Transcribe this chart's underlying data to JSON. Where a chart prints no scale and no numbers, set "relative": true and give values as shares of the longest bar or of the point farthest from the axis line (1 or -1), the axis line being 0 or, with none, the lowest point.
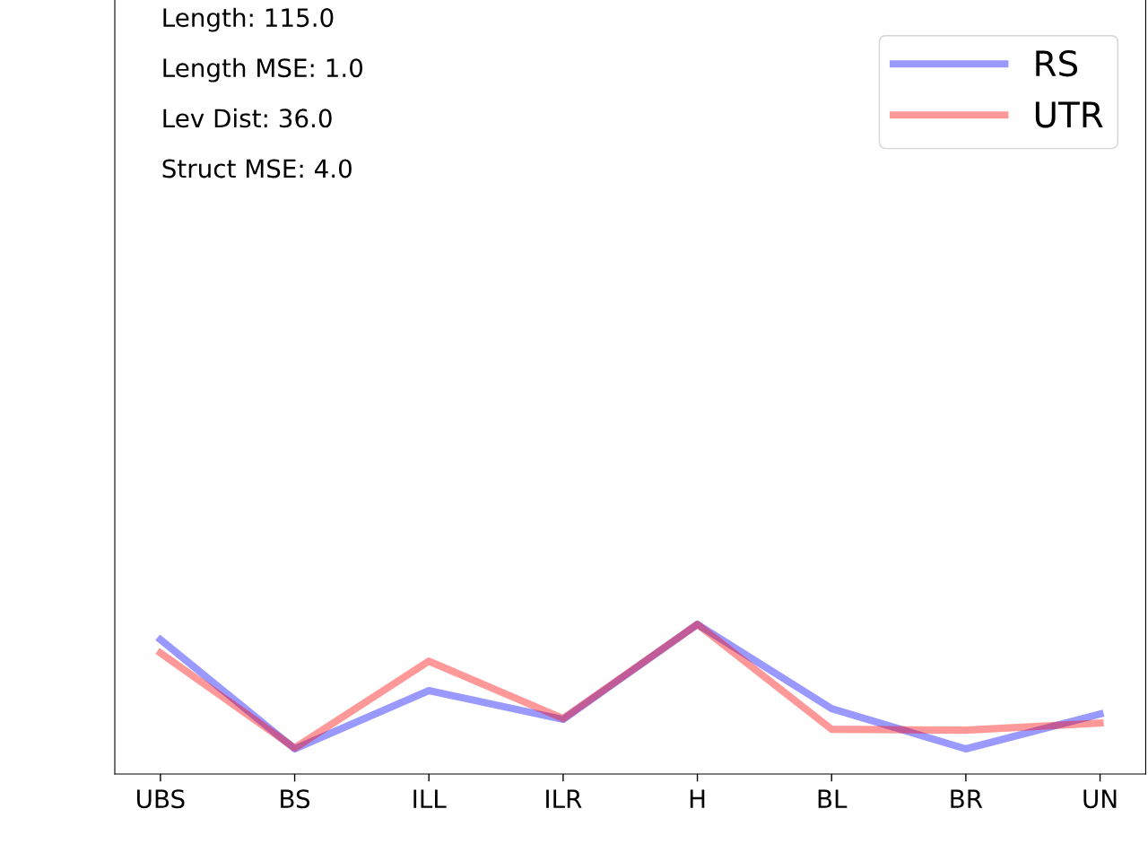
{
  "chart_data": {
    "type": "line",
    "relative": true,
    "categories": [
      "UBS",
      "BS",
      "ILL",
      "ILR",
      "H",
      "BL",
      "BR",
      "UN"
    ],
    "series": [
      {
        "name": "RS",
        "color": "#9999ff",
        "values": [
          0.898,
          0.168,
          0.557,
          0.365,
          1.0,
          0.437,
          0.168,
          0.401
        ]
      },
      {
        "name": "UTR",
        "color": "#ff9999",
        "values": [
          0.808,
          0.174,
          0.754,
          0.371,
          1.0,
          0.299,
          0.293,
          0.341
        ]
      }
    ],
    "annotations": [
      "Length: 115.0",
      "Length MSE: 1.0",
      "Lev Dist: 36.0",
      "Struct MSE: 4.0"
    ],
    "legend": "top right",
    "grid": false,
    "marker": "none",
    "line_style": "solid"
  }
}
